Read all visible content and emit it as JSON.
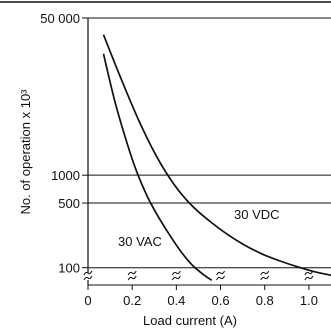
{
  "chart_data": {
    "type": "line",
    "title": "",
    "xlabel": "Load current (A)",
    "ylabel": "No. of operation x 10³",
    "xlim": [
      0,
      1.1
    ],
    "ylim": [
      65,
      50000
    ],
    "y_scale": "log",
    "x_ticks": [
      {
        "value": 0,
        "label": "0"
      },
      {
        "value": 0.2,
        "label": "0.2"
      },
      {
        "value": 0.4,
        "label": "0.4"
      },
      {
        "value": 0.6,
        "label": "0.6"
      },
      {
        "value": 0.8,
        "label": "0.8"
      },
      {
        "value": 1.0,
        "label": "1.0"
      }
    ],
    "y_ticks": [
      {
        "value": 100,
        "label": "100"
      },
      {
        "value": 500,
        "label": "500"
      },
      {
        "value": 1000,
        "label": "1000"
      },
      {
        "value": 50000,
        "label": "50 000"
      }
    ],
    "grid": "horizontal",
    "axis_break": true,
    "series": [
      {
        "name": "30 VAC",
        "x": [
          0.07,
          0.12,
          0.17,
          0.22,
          0.27,
          0.32,
          0.37,
          0.42,
          0.47,
          0.52,
          0.56
        ],
        "y": [
          20500,
          6500,
          2500,
          1100,
          580,
          350,
          225,
          150,
          108,
          85,
          73
        ]
      },
      {
        "name": "30 VDC",
        "x": [
          0.07,
          0.15,
          0.23,
          0.31,
          0.39,
          0.47,
          0.55,
          0.63,
          0.71,
          0.79,
          0.87,
          0.95,
          1.03,
          1.11
        ],
        "y": [
          33000,
          11000,
          3900,
          1600,
          790,
          470,
          320,
          230,
          175,
          140,
          118,
          102,
          90,
          82
        ]
      }
    ]
  }
}
